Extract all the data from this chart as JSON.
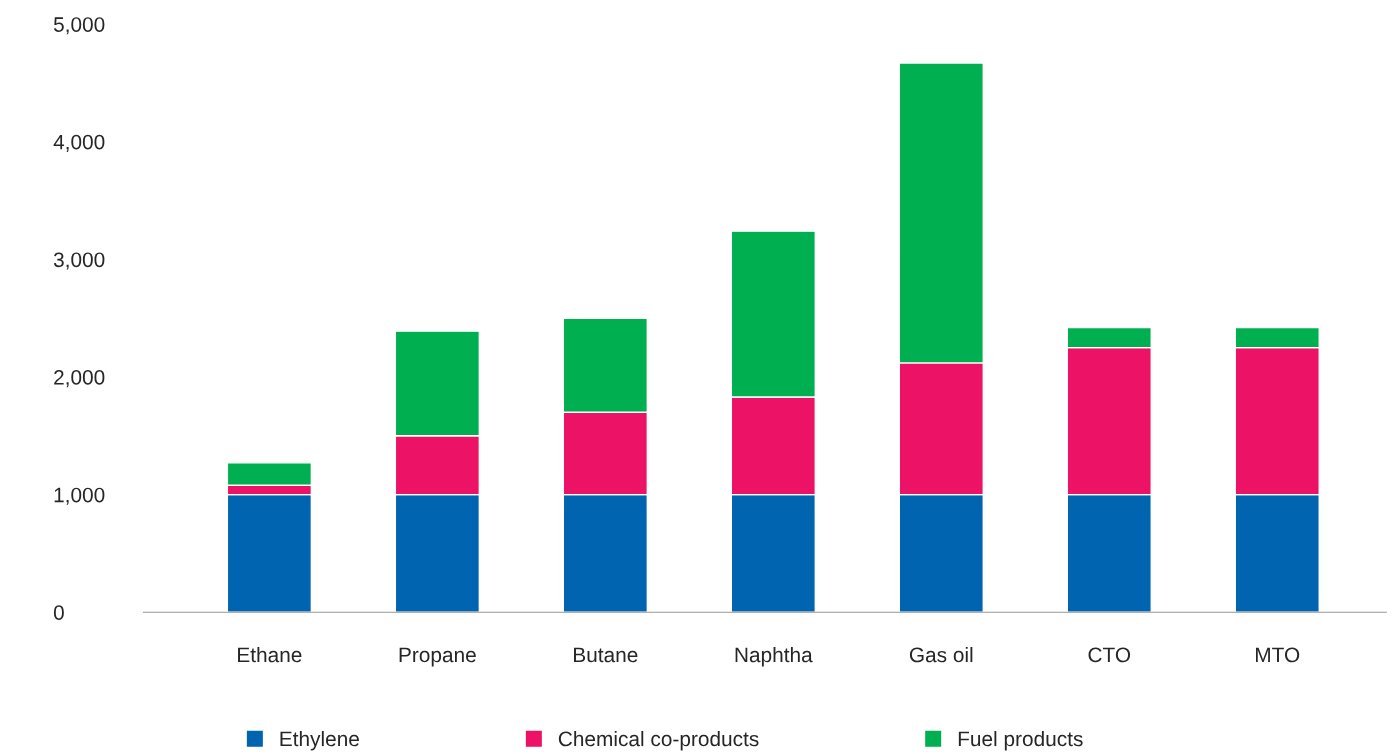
{
  "chart_data": {
    "type": "bar",
    "stacked": true,
    "categories": [
      "Ethane",
      "Propane",
      "Butane",
      "Naphtha",
      "Gas oil",
      "CTO",
      "MTO"
    ],
    "series": [
      {
        "name": "Ethylene",
        "color": "#0064b0",
        "values": [
          1000,
          1000,
          1000,
          1000,
          1000,
          1000,
          1000
        ]
      },
      {
        "name": "Chemical co-products",
        "color": "#ec1265",
        "values": [
          80,
          500,
          700,
          830,
          1120,
          1250,
          1250
        ]
      },
      {
        "name": "Fuel products",
        "color": "#00b050",
        "values": [
          190,
          890,
          800,
          1410,
          2550,
          170,
          170
        ]
      }
    ],
    "ylim": [
      0,
      5000
    ],
    "yticks": [
      {
        "value": 0,
        "label": "0"
      },
      {
        "value": 1000,
        "label": "1,000"
      },
      {
        "value": 2000,
        "label": "2,000"
      },
      {
        "value": 3000,
        "label": "3,000"
      },
      {
        "value": 4000,
        "label": "4,000"
      },
      {
        "value": 5000,
        "label": "5,000"
      }
    ],
    "grid": false,
    "legend": "bottom"
  }
}
